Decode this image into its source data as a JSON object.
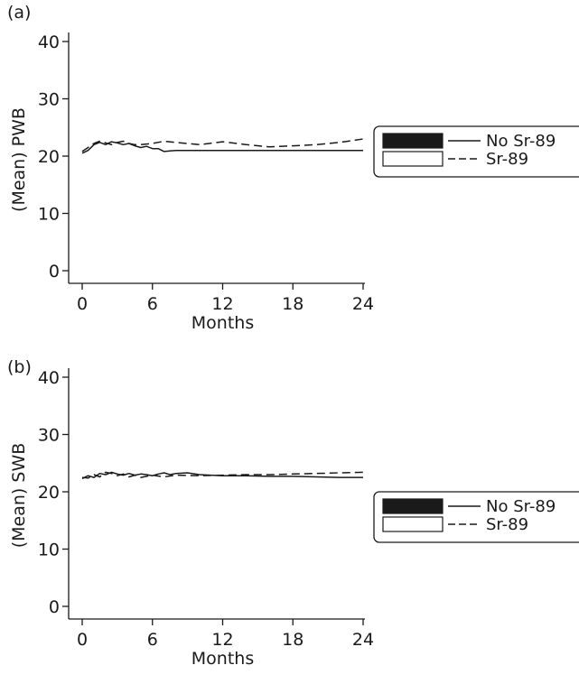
{
  "chart_data": [
    {
      "panel_label": "(a)",
      "type": "line",
      "xlabel": "Months",
      "ylabel": "(Mean) PWB",
      "xlim": [
        0,
        24
      ],
      "ylim": [
        0,
        40
      ],
      "xticks": [
        "0",
        "6",
        "12",
        "18",
        "24"
      ],
      "yticks": [
        "0",
        "10",
        "20",
        "30",
        "40"
      ],
      "grid": false,
      "legend_position": "right",
      "series": [
        {
          "name": "No Sr-89",
          "style": "solid",
          "x": [
            0,
            0.5,
            1,
            1.5,
            2,
            2.5,
            3,
            3.5,
            4,
            4.5,
            5,
            5.5,
            6,
            6.5,
            7,
            7.5,
            8,
            10,
            12,
            14,
            16,
            18,
            20,
            22,
            24
          ],
          "y": [
            20.5,
            21.0,
            22.0,
            22.4,
            22.0,
            22.5,
            22.3,
            22.0,
            22.2,
            21.8,
            21.5,
            21.7,
            21.3,
            21.3,
            20.8,
            20.9,
            21.0,
            21.0,
            21.0,
            21.0,
            21.0,
            21.0,
            21.0,
            21.0,
            21.0
          ]
        },
        {
          "name": "Sr-89",
          "style": "dashed",
          "x": [
            0,
            0.5,
            1,
            1.5,
            2,
            2.5,
            3,
            3.5,
            4,
            4.5,
            5,
            6,
            7,
            8,
            10,
            12,
            14,
            16,
            18,
            20,
            22,
            24
          ],
          "y": [
            20.8,
            21.5,
            22.2,
            22.6,
            22.3,
            22.0,
            22.4,
            22.6,
            22.2,
            22.0,
            22.0,
            22.2,
            22.6,
            22.4,
            22.0,
            22.5,
            22.0,
            21.6,
            21.8,
            22.0,
            22.4,
            23.0
          ]
        }
      ]
    },
    {
      "panel_label": "(b)",
      "type": "line",
      "xlabel": "Months",
      "ylabel": "(Mean) SWB",
      "xlim": [
        0,
        24
      ],
      "ylim": [
        0,
        40
      ],
      "xticks": [
        "0",
        "6",
        "12",
        "18",
        "24"
      ],
      "yticks": [
        "0",
        "10",
        "20",
        "30",
        "40"
      ],
      "grid": false,
      "legend_position": "right",
      "series": [
        {
          "name": "No Sr-89",
          "style": "solid",
          "x": [
            0,
            0.5,
            1,
            1.5,
            2,
            2.5,
            3,
            3.5,
            4,
            4.5,
            5,
            5.5,
            6,
            6.5,
            7,
            7.5,
            8,
            9,
            10,
            12,
            14,
            16,
            18,
            20,
            22,
            24
          ],
          "y": [
            22.3,
            22.8,
            22.5,
            23.2,
            23.0,
            23.4,
            23.1,
            22.9,
            23.2,
            22.9,
            23.1,
            23.0,
            22.8,
            23.1,
            23.3,
            23.0,
            23.2,
            23.3,
            23.0,
            22.8,
            22.8,
            22.7,
            22.7,
            22.6,
            22.5,
            22.5
          ]
        },
        {
          "name": "Sr-89",
          "style": "dashed",
          "x": [
            0,
            0.5,
            1,
            1.5,
            2,
            2.5,
            3,
            3.5,
            4,
            4.5,
            5,
            6,
            7,
            8,
            10,
            12,
            14,
            16,
            18,
            20,
            22,
            24
          ],
          "y": [
            22.5,
            22.4,
            23.0,
            22.6,
            23.4,
            23.2,
            22.8,
            23.1,
            22.6,
            22.9,
            22.5,
            22.9,
            22.6,
            22.9,
            22.8,
            22.9,
            23.0,
            23.0,
            23.1,
            23.2,
            23.3,
            23.4
          ]
        }
      ]
    }
  ]
}
